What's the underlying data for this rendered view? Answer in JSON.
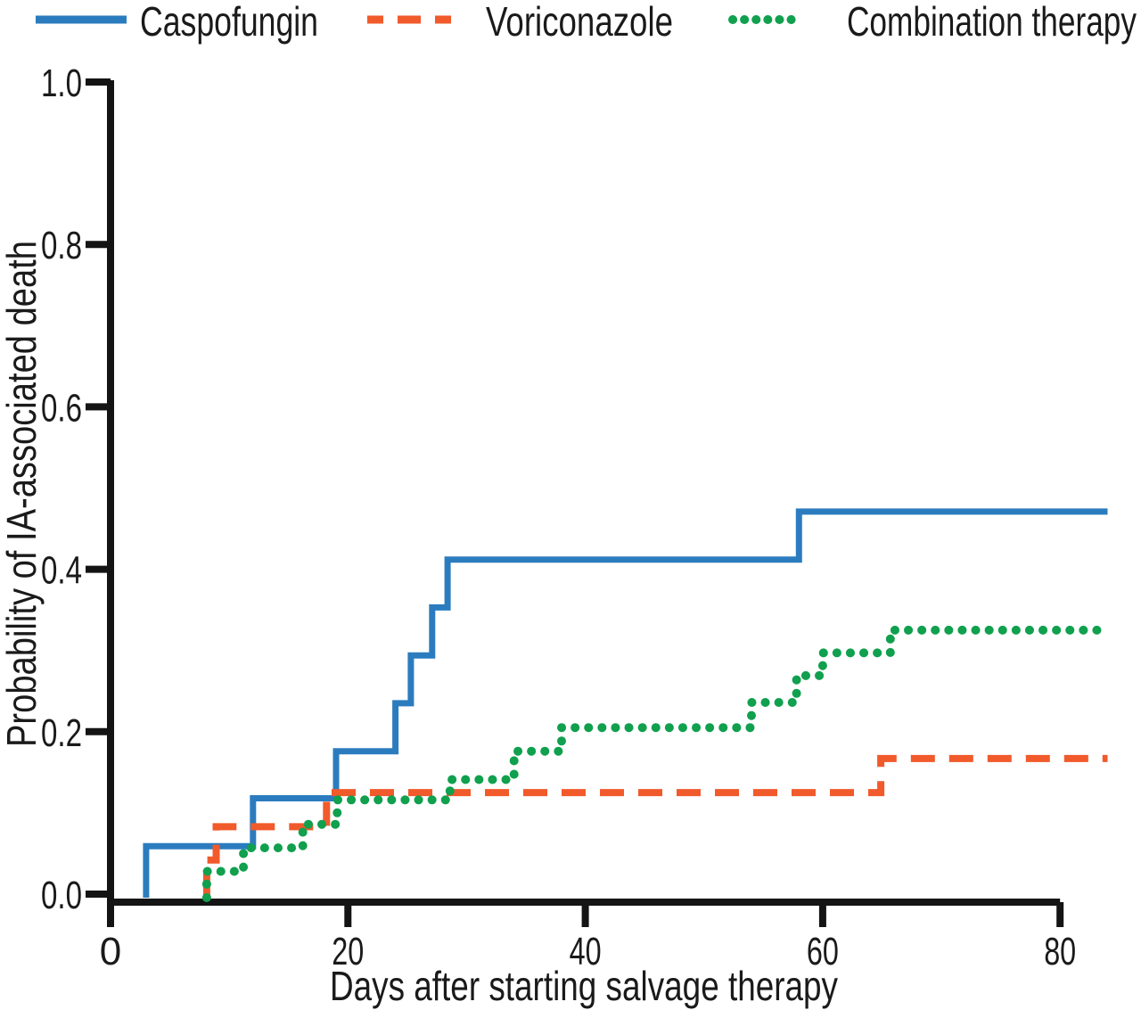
{
  "legend": {
    "items": [
      {
        "label": "Caspofungin",
        "color": "#2B7CBF",
        "line_style": "solid"
      },
      {
        "label": "Voriconazole",
        "color": "#F15A2B",
        "line_style": "dashed"
      },
      {
        "label": "Combination therapy",
        "color": "#10A04E",
        "line_style": "dotted"
      }
    ]
  },
  "chart_data": {
    "type": "line",
    "subtype": "kaplan-meier-step",
    "title": "",
    "xlabel": "Days after starting salvage therapy",
    "ylabel": "Probability of IA-associated death",
    "xlim": [
      0,
      84
    ],
    "ylim": [
      0.0,
      1.0
    ],
    "x_ticks": [
      0,
      20,
      40,
      60,
      80
    ],
    "x_tick_labels": [
      "0",
      "20",
      "40",
      "60",
      "80"
    ],
    "y_ticks": [
      0.0,
      0.2,
      0.4,
      0.6,
      0.8,
      1.0
    ],
    "y_tick_labels": [
      "0.0",
      "0.2",
      "0.4",
      "0.6",
      "0.8",
      "1.0"
    ],
    "grid": false,
    "legend_position": "top",
    "curve_end_day": 84,
    "series": [
      {
        "name": "Caspofungin",
        "color": "#2B7CBF",
        "line_style": "solid",
        "steps": [
          {
            "day": 3,
            "prob": 0.059
          },
          {
            "day": 12,
            "prob": 0.118
          },
          {
            "day": 19,
            "prob": 0.176
          },
          {
            "day": 24,
            "prob": 0.235
          },
          {
            "day": 25.3,
            "prob": 0.294
          },
          {
            "day": 27.1,
            "prob": 0.353
          },
          {
            "day": 28.4,
            "prob": 0.412
          },
          {
            "day": 58,
            "prob": 0.471
          }
        ]
      },
      {
        "name": "Voriconazole",
        "color": "#F15A2B",
        "line_style": "dashed",
        "steps": [
          {
            "day": 8.1,
            "prob": 0.042
          },
          {
            "day": 8.9,
            "prob": 0.083
          },
          {
            "day": 18.2,
            "prob": 0.125
          },
          {
            "day": 64.9,
            "prob": 0.167
          }
        ]
      },
      {
        "name": "Combination therapy",
        "color": "#10A04E",
        "line_style": "dotted",
        "steps": [
          {
            "day": 8.1,
            "prob": 0.028
          },
          {
            "day": 11.2,
            "prob": 0.057
          },
          {
            "day": 16.2,
            "prob": 0.086
          },
          {
            "day": 19.1,
            "prob": 0.116
          },
          {
            "day": 28.6,
            "prob": 0.141
          },
          {
            "day": 34,
            "prob": 0.176
          },
          {
            "day": 38,
            "prob": 0.205
          },
          {
            "day": 54,
            "prob": 0.236
          },
          {
            "day": 57.8,
            "prob": 0.269
          },
          {
            "day": 60,
            "prob": 0.297
          },
          {
            "day": 65.7,
            "prob": 0.325
          }
        ]
      }
    ]
  }
}
